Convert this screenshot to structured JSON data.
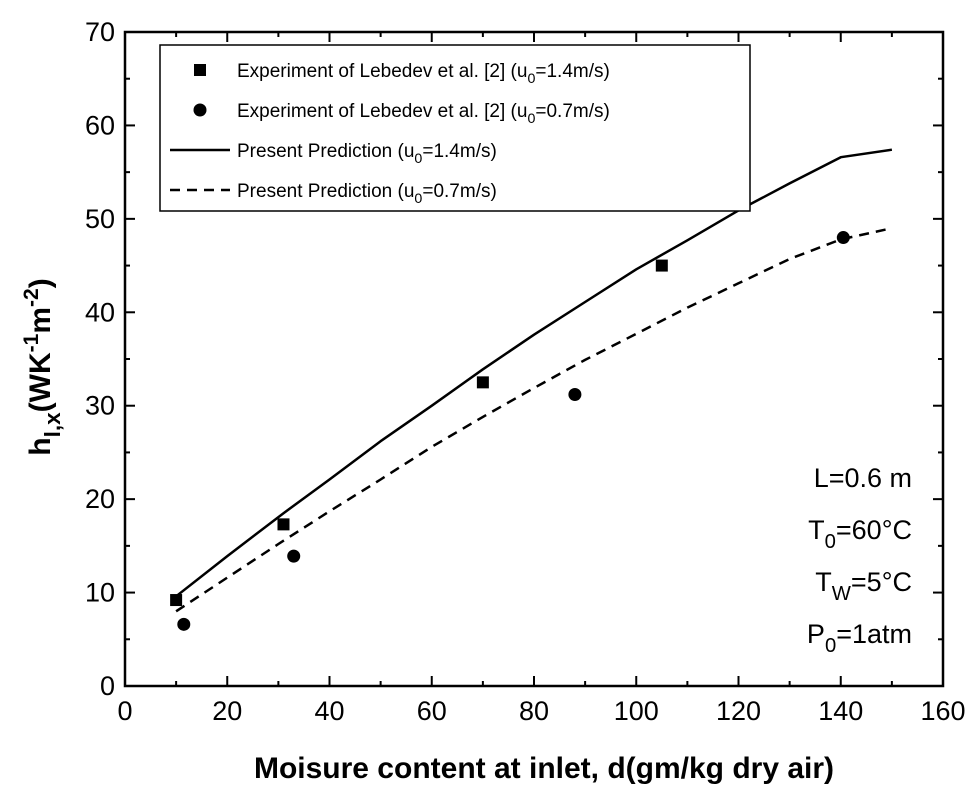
{
  "chart_data": {
    "type": "scatter",
    "xlabel": "Moisure content at inlet, d(gm/kg dry air)",
    "ylabel": {
      "base": "h",
      "sub": "l,x",
      "units": [
        "(WK",
        "-1",
        "m",
        "-2",
        ")"
      ]
    },
    "xlim": [
      0,
      160
    ],
    "ylim": [
      0,
      70
    ],
    "x_ticks": [
      "0",
      "20",
      "40",
      "60",
      "80",
      "100",
      "120",
      "140",
      "160"
    ],
    "y_ticks": [
      "0",
      "10",
      "20",
      "30",
      "40",
      "50",
      "60",
      "70"
    ],
    "grid": false,
    "legend_position": "top-left",
    "series": [
      {
        "name": "Experiment of Lebedev et al. [2] (u0=1.4m/s)",
        "legend": {
          "main": "Experiment of Lebedev et al. [2] (u",
          "sub": "0",
          "tail": "=1.4m/s)"
        },
        "kind": "marker",
        "marker": "square",
        "x": [
          10,
          31,
          70,
          105
        ],
        "y": [
          9.2,
          17.3,
          32.5,
          45
        ]
      },
      {
        "name": "Experiment of Lebedev et al. [2] (u0=0.7m/s)",
        "legend": {
          "main": "Experiment of Lebedev et al. [2] (u",
          "sub": "0",
          "tail": "=0.7m/s)"
        },
        "kind": "marker",
        "marker": "circle",
        "x": [
          11.5,
          33,
          88,
          140.5
        ],
        "y": [
          6.6,
          13.9,
          31.2,
          48
        ]
      },
      {
        "name": "Present Prediction (u0=1.4m/s)",
        "legend": {
          "main": "Present Prediction (u",
          "sub": "0",
          "tail": "=1.4m/s)"
        },
        "kind": "line",
        "dash": "solid",
        "x": [
          10,
          20,
          31,
          40,
          50,
          60,
          70,
          80,
          90,
          100,
          110,
          120,
          130,
          140,
          150
        ],
        "y": [
          9.6,
          13.9,
          18.5,
          22.1,
          26.2,
          30.0,
          33.9,
          37.6,
          41.1,
          44.6,
          47.7,
          50.9,
          53.8,
          56.6,
          57.4
        ]
      },
      {
        "name": "Present Prediction (u0=0.7m/s)",
        "legend": {
          "main": "Present Prediction (u",
          "sub": "0",
          "tail": "=0.7m/s)"
        },
        "kind": "line",
        "dash": "dashed",
        "x": [
          10,
          20,
          30,
          40,
          50,
          60,
          70,
          80,
          90,
          100,
          110,
          120,
          130,
          140,
          150
        ],
        "y": [
          8.0,
          11.6,
          15.2,
          18.7,
          22.1,
          25.6,
          28.8,
          31.9,
          34.9,
          37.7,
          40.5,
          43.1,
          45.7,
          47.8,
          49.0
        ]
      }
    ],
    "annotations": [
      {
        "main": "L=0.6 m"
      },
      {
        "main": "T",
        "sub": "0",
        "tail": "=60°C"
      },
      {
        "main": "T",
        "sub": "W",
        "tail": "=5°C"
      },
      {
        "main": "P",
        "sub": "0",
        "tail": "=1atm"
      }
    ]
  }
}
